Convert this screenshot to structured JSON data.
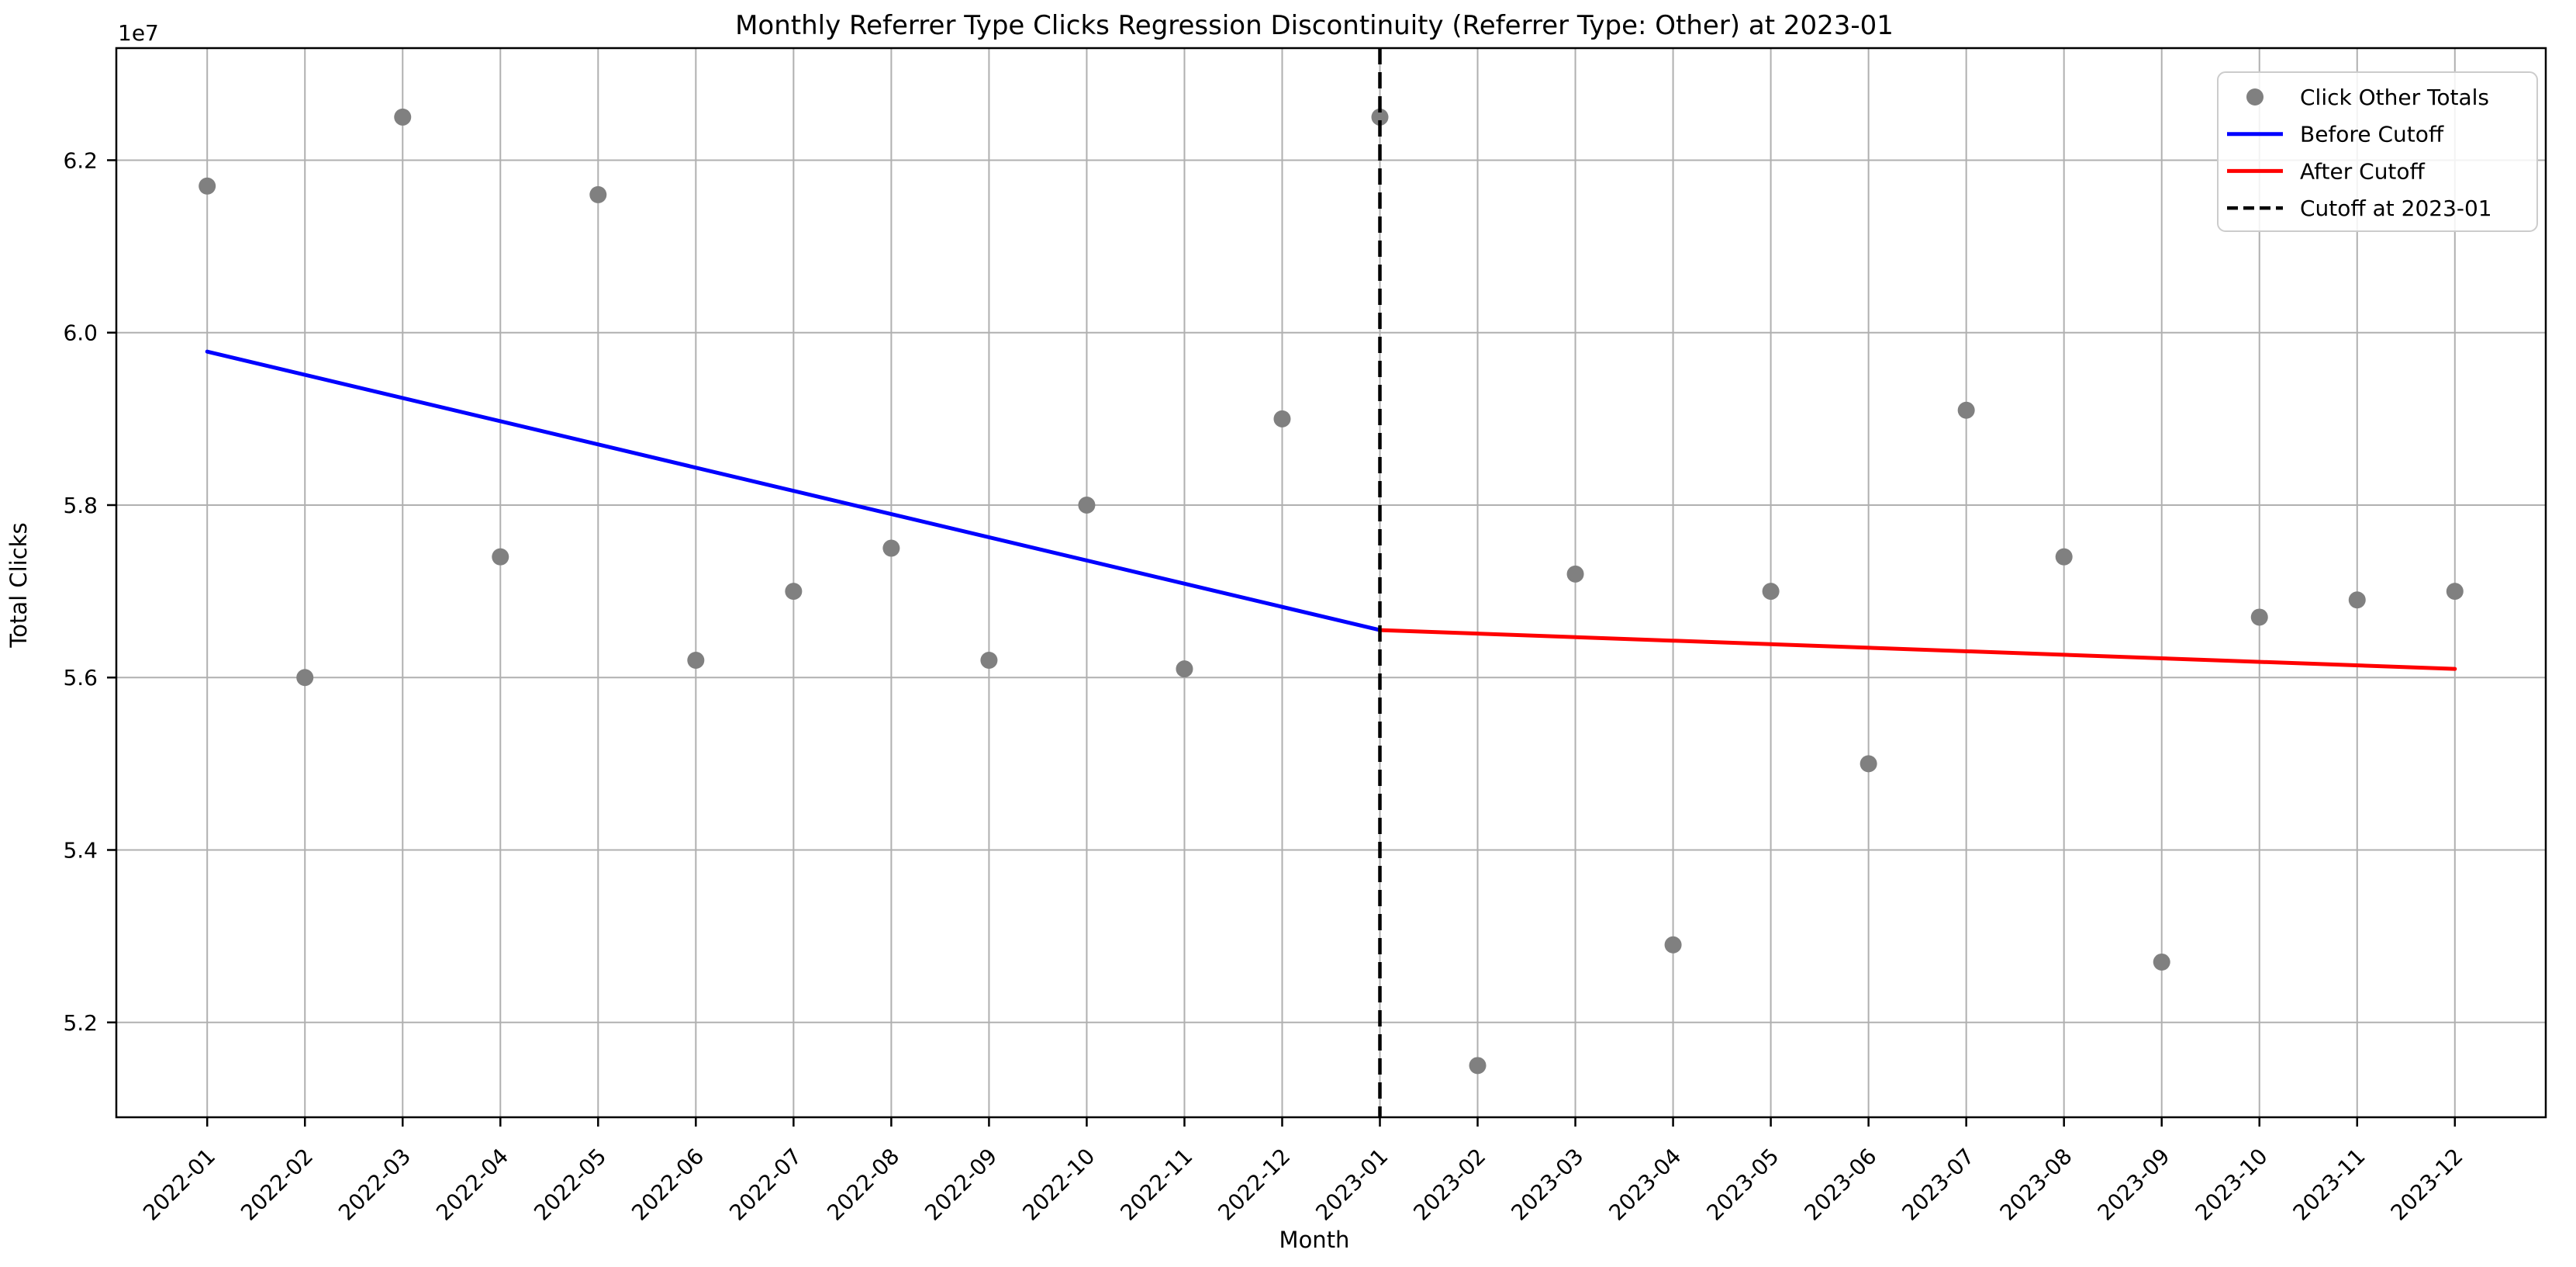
{
  "page": {
    "background": "#ffffff"
  },
  "chart_data": {
    "type": "scatter",
    "title": "Monthly Referrer Type Clicks Regression Discontinuity (Referrer Type: Other) at 2023-01",
    "xlabel": "Month",
    "ylabel": "Total Clicks",
    "y_axis_offset_label": "1e7",
    "y_unit_multiplier": 10000000,
    "categories": [
      "2022-01",
      "2022-02",
      "2022-03",
      "2022-04",
      "2022-05",
      "2022-06",
      "2022-07",
      "2022-08",
      "2022-09",
      "2022-10",
      "2022-11",
      "2022-12",
      "2023-01",
      "2023-02",
      "2023-03",
      "2023-04",
      "2023-05",
      "2023-06",
      "2023-07",
      "2023-08",
      "2023-09",
      "2023-10",
      "2023-11",
      "2023-12"
    ],
    "series": [
      {
        "name": "Click Other Totals",
        "type": "scatter",
        "color": "#808080",
        "values_e7": [
          6.17,
          5.6,
          6.25,
          5.74,
          6.16,
          5.62,
          5.7,
          5.75,
          5.62,
          5.8,
          5.61,
          5.9,
          6.25,
          5.15,
          5.72,
          5.29,
          5.7,
          5.5,
          5.91,
          5.74,
          5.27,
          5.67,
          5.69,
          5.7
        ]
      },
      {
        "name": "Before Cutoff",
        "type": "line",
        "color": "#0000ff",
        "x_index": [
          0,
          12
        ],
        "y_e7": [
          5.978,
          5.655
        ]
      },
      {
        "name": "After Cutoff",
        "type": "line",
        "color": "#ff0000",
        "x_index": [
          12,
          23
        ],
        "y_e7": [
          5.655,
          5.61
        ]
      },
      {
        "name": "Cutoff at 2023-01",
        "type": "vline",
        "style": "dashed",
        "color": "#000000",
        "x_category": "2023-01",
        "x_index": 12
      }
    ],
    "legend": {
      "position": "upper right",
      "entries": [
        {
          "label": "Click Other Totals",
          "handle": "marker",
          "color": "#808080"
        },
        {
          "label": "Before Cutoff",
          "handle": "line",
          "color": "#0000ff"
        },
        {
          "label": "After Cutoff",
          "handle": "line",
          "color": "#ff0000"
        },
        {
          "label": "Cutoff at 2023-01",
          "handle": "dashed-line",
          "color": "#000000"
        }
      ]
    },
    "yticks": {
      "values_e7": [
        5.2,
        5.4,
        5.6,
        5.8,
        6.0,
        6.2
      ],
      "labels": [
        "5.2",
        "5.4",
        "5.6",
        "5.8",
        "6.0",
        "6.2"
      ]
    },
    "ylim_e7": [
      5.09,
      6.33
    ],
    "xlim_index": [
      -0.93,
      23.93
    ],
    "grid": true,
    "colors": {
      "grid": "#b0b0b0",
      "spine": "#000000",
      "text": "#000000",
      "background": "#ffffff"
    }
  }
}
